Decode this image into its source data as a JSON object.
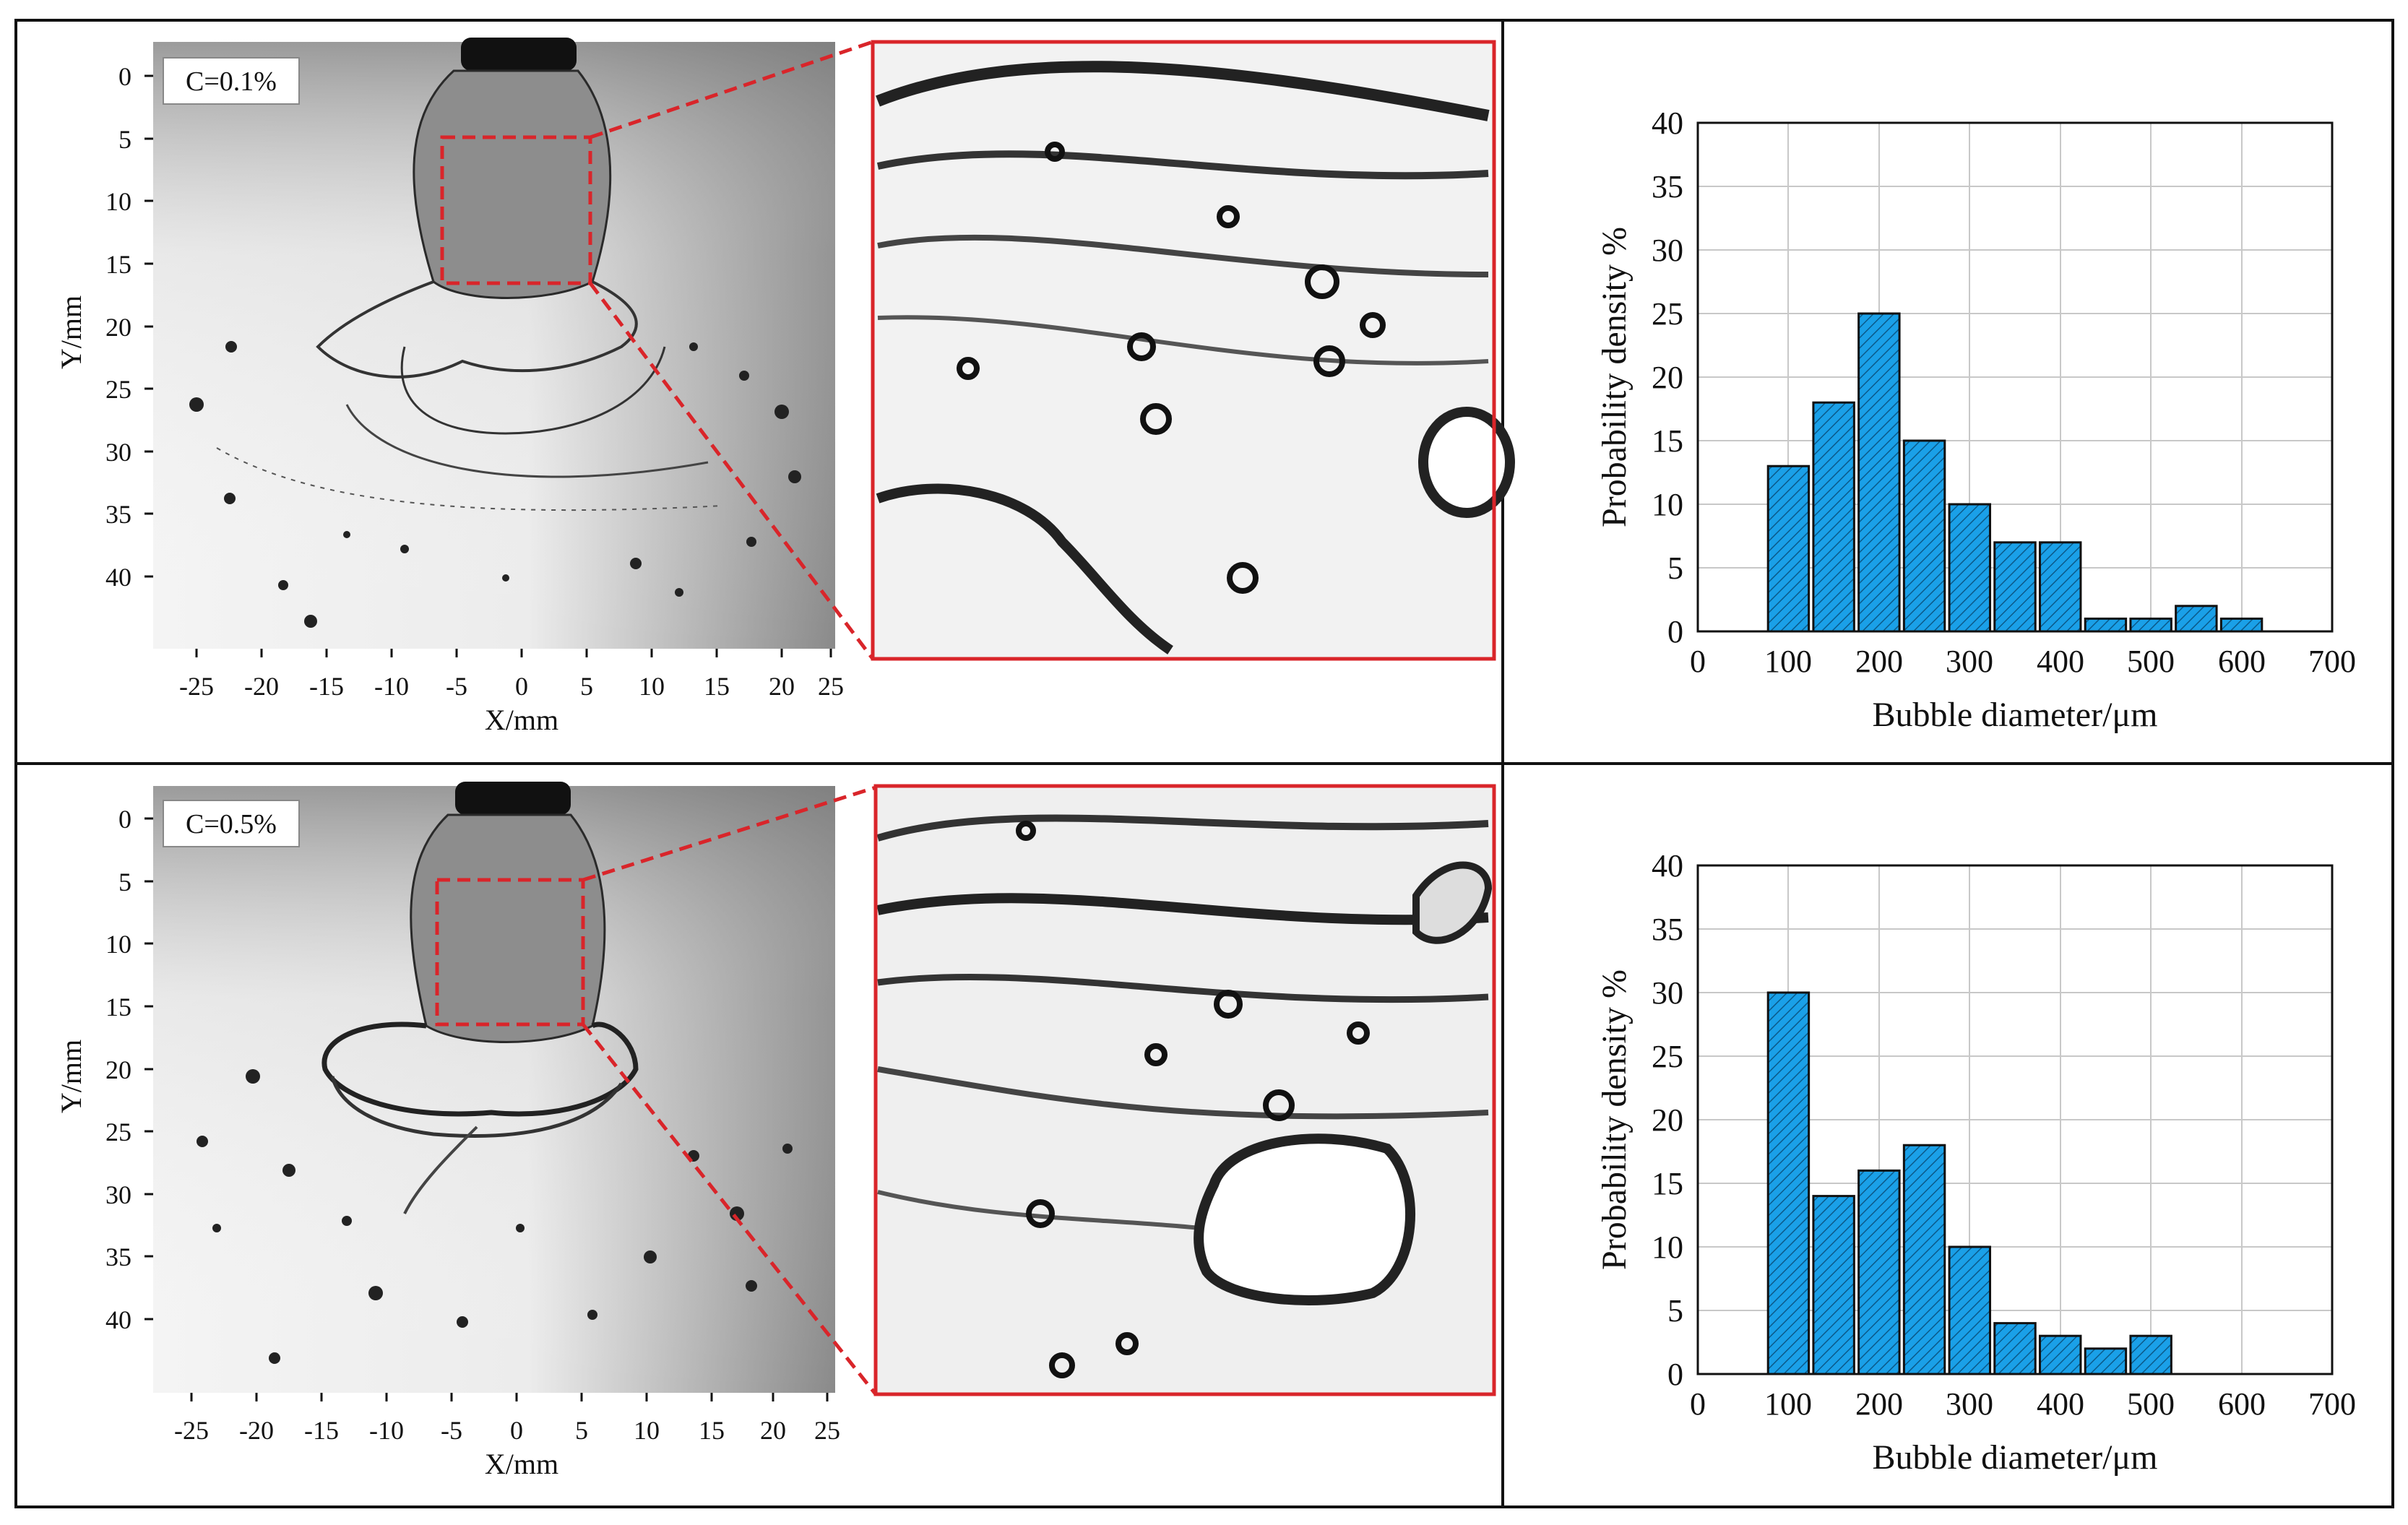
{
  "panels": [
    {
      "label": "C=0.1%",
      "photo_axes": {
        "xlabel": "X/mm",
        "ylabel": "Y/mm",
        "xticks": [
          "-25",
          "-20",
          "-15",
          "-10",
          "-5",
          "0",
          "5",
          "10",
          "15",
          "20",
          "25"
        ],
        "yticks": [
          "0",
          "5",
          "10",
          "15",
          "20",
          "25",
          "30",
          "35",
          "40"
        ]
      }
    },
    {
      "label": "C=0.5%",
      "photo_axes": {
        "xlabel": "X/mm",
        "ylabel": "Y/mm",
        "xticks": [
          "-25",
          "-20",
          "-15",
          "-10",
          "-5",
          "0",
          "5",
          "10",
          "15",
          "20",
          "25"
        ],
        "yticks": [
          "0",
          "5",
          "10",
          "15",
          "20",
          "25",
          "30",
          "35",
          "40"
        ]
      }
    }
  ],
  "colors": {
    "bar_fill": "#1aa0e8",
    "bar_hatch": "#0b5a8a",
    "zoom_box": "#d9252a",
    "frame": "#111111",
    "grid": "#c8c8c8"
  },
  "chart_data": [
    {
      "type": "bar",
      "xlabel": "Bubble diameter/μm",
      "ylabel": "Probability density %",
      "xlim": [
        0,
        700
      ],
      "ylim": [
        0,
        40
      ],
      "xticks": [
        0,
        100,
        200,
        300,
        400,
        500,
        600,
        700
      ],
      "yticks": [
        0,
        5,
        10,
        15,
        20,
        25,
        30,
        35,
        40
      ],
      "grid": true,
      "x": [
        100,
        150,
        200,
        250,
        300,
        350,
        400,
        450,
        500,
        550,
        600
      ],
      "values": [
        13,
        18,
        25,
        15,
        10,
        7,
        7,
        1,
        1,
        2,
        1
      ]
    },
    {
      "type": "bar",
      "xlabel": "Bubble diameter/μm",
      "ylabel": "Probability density %",
      "xlim": [
        0,
        700
      ],
      "ylim": [
        0,
        40
      ],
      "xticks": [
        0,
        100,
        200,
        300,
        400,
        500,
        600,
        700
      ],
      "yticks": [
        0,
        5,
        10,
        15,
        20,
        25,
        30,
        35,
        40
      ],
      "grid": true,
      "x": [
        100,
        150,
        200,
        250,
        300,
        350,
        400,
        450,
        500
      ],
      "values": [
        30,
        14,
        16,
        18,
        10,
        4,
        3,
        2,
        3
      ]
    }
  ]
}
